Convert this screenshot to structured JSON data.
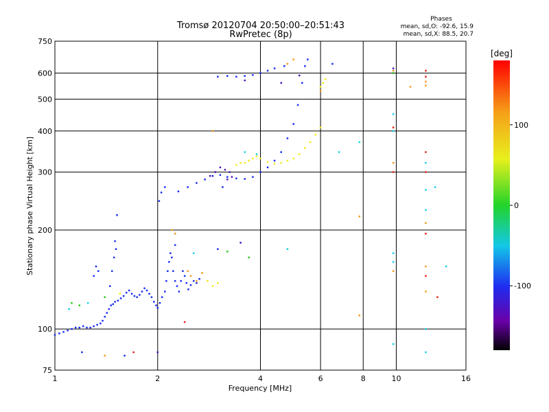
{
  "chart_data": {
    "type": "scatter",
    "title": "Tromsø 20120704 20:50:00–20:51:43",
    "subtitle": "RwPretec (8p)",
    "xlabel": "Frequency [MHz]",
    "ylabel": "Stationary phase Virtual Height [km]",
    "x_scale": "log",
    "y_scale": "log",
    "xlim": [
      1,
      16
    ],
    "ylim": [
      75,
      750
    ],
    "x_ticks": [
      1,
      2,
      4,
      6,
      8,
      10,
      16
    ],
    "y_ticks": [
      75,
      100,
      200,
      300,
      400,
      500,
      600,
      750
    ],
    "grid": true,
    "phase_stats": {
      "heading": "Phases",
      "line1": "mean, sd,O: -92.6, 15.9",
      "line2": "mean, sd,X:  88.5, 20.7"
    },
    "colorbar": {
      "label": "[deg]",
      "min": -180,
      "max": 180,
      "ticks": [
        100,
        0,
        -100
      ]
    },
    "colors": {
      "blue": "#1a2ff2",
      "purple": "#4a16b8",
      "yellow": "#f0ec1a",
      "orange": "#f59a18",
      "red": "#e8221a",
      "cyan": "#16d2e6",
      "green": "#28c81e"
    },
    "series": [
      {
        "color": "blue",
        "points": [
          [
            1.0,
            96
          ],
          [
            1.03,
            97
          ],
          [
            1.06,
            98
          ],
          [
            1.09,
            99
          ],
          [
            1.12,
            100
          ],
          [
            1.15,
            101
          ],
          [
            1.18,
            101
          ],
          [
            1.21,
            102
          ],
          [
            1.24,
            101
          ],
          [
            1.27,
            101
          ],
          [
            1.3,
            102
          ],
          [
            1.33,
            103
          ],
          [
            1.36,
            104
          ],
          [
            1.38,
            106
          ],
          [
            1.4,
            109
          ],
          [
            1.42,
            112
          ],
          [
            1.44,
            115
          ],
          [
            1.46,
            118
          ],
          [
            1.48,
            119
          ],
          [
            1.5,
            121
          ],
          [
            1.53,
            122
          ],
          [
            1.56,
            124
          ],
          [
            1.59,
            126
          ],
          [
            1.62,
            129
          ],
          [
            1.65,
            131
          ],
          [
            1.68,
            128
          ],
          [
            1.71,
            126
          ],
          [
            1.74,
            125
          ],
          [
            1.77,
            127
          ],
          [
            1.8,
            130
          ],
          [
            1.83,
            133
          ],
          [
            1.86,
            131
          ],
          [
            1.89,
            128
          ],
          [
            1.92,
            125
          ],
          [
            1.95,
            121
          ],
          [
            1.98,
            118
          ],
          [
            2.0,
            116
          ],
          [
            2.03,
            120
          ],
          [
            2.06,
            125
          ],
          [
            2.1,
            130
          ],
          [
            2.12,
            140
          ],
          [
            2.14,
            150
          ],
          [
            2.16,
            160
          ],
          [
            2.18,
            170
          ],
          [
            2.2,
            165
          ],
          [
            2.22,
            150
          ],
          [
            2.25,
            140
          ],
          [
            2.28,
            135
          ],
          [
            2.31,
            130
          ],
          [
            2.34,
            140
          ],
          [
            2.37,
            150
          ],
          [
            2.4,
            145
          ],
          [
            2.43,
            138
          ],
          [
            2.46,
            132
          ],
          [
            2.5,
            136
          ],
          [
            2.55,
            140
          ],
          [
            2.6,
            138
          ],
          [
            2.65,
            142
          ],
          [
            1.45,
            135
          ],
          [
            1.47,
            150
          ],
          [
            1.49,
            165
          ],
          [
            1.51,
            175
          ],
          [
            1.5,
            185
          ],
          [
            1.3,
            145
          ],
          [
            1.32,
            155
          ],
          [
            1.34,
            150
          ],
          [
            1.52,
            222
          ],
          [
            2.02,
            245
          ],
          [
            2.05,
            260
          ],
          [
            2.1,
            270
          ],
          [
            2.3,
            262
          ],
          [
            2.45,
            270
          ],
          [
            2.6,
            278
          ],
          [
            2.75,
            285
          ],
          [
            2.9,
            292
          ],
          [
            3.05,
            294
          ],
          [
            3.2,
            290
          ],
          [
            3.4,
            287
          ],
          [
            3.6,
            286
          ],
          [
            3.8,
            290
          ],
          [
            4.0,
            300
          ],
          [
            4.2,
            310
          ],
          [
            4.4,
            325
          ],
          [
            4.6,
            345
          ],
          [
            4.8,
            380
          ],
          [
            5.0,
            420
          ],
          [
            5.15,
            480
          ],
          [
            5.3,
            560
          ],
          [
            5.4,
            630
          ],
          [
            3.0,
            585
          ],
          [
            3.2,
            588
          ],
          [
            3.4,
            585
          ],
          [
            3.6,
            588
          ],
          [
            3.8,
            592
          ],
          [
            4.0,
            600
          ],
          [
            4.2,
            610
          ],
          [
            4.4,
            620
          ],
          [
            4.7,
            630
          ],
          [
            3.1,
            270
          ],
          [
            3.0,
            175
          ],
          [
            2.25,
            180
          ],
          [
            1.2,
            85
          ],
          [
            1.6,
            83
          ],
          [
            5.5,
            660
          ],
          [
            6.5,
            640
          ]
        ]
      },
      {
        "color": "purple",
        "points": [
          [
            2.85,
            292
          ],
          [
            2.95,
            300
          ],
          [
            3.05,
            310
          ],
          [
            3.15,
            305
          ],
          [
            3.25,
            300
          ],
          [
            3.3,
            290
          ],
          [
            3.2,
            285
          ],
          [
            3.5,
            183
          ],
          [
            2.0,
            85
          ],
          [
            9.8,
            620
          ],
          [
            5.2,
            590
          ],
          [
            4.6,
            560
          ],
          [
            3.6,
            570
          ]
        ]
      },
      {
        "color": "yellow",
        "points": [
          [
            3.6,
            320
          ],
          [
            3.7,
            325
          ],
          [
            3.8,
            330
          ],
          [
            3.9,
            335
          ],
          [
            4.0,
            330
          ],
          [
            4.2,
            322
          ],
          [
            4.4,
            318
          ],
          [
            4.6,
            320
          ],
          [
            4.8,
            325
          ],
          [
            5.0,
            330
          ],
          [
            5.2,
            340
          ],
          [
            5.4,
            355
          ],
          [
            5.6,
            370
          ],
          [
            5.8,
            390
          ],
          [
            6.0,
            410
          ],
          [
            3.5,
            320
          ],
          [
            3.4,
            315
          ],
          [
            6.0,
            545
          ],
          [
            6.1,
            560
          ],
          [
            6.2,
            575
          ],
          [
            2.8,
            140
          ],
          [
            2.9,
            135
          ],
          [
            3.0,
            138
          ],
          [
            1.55,
            128
          ]
        ]
      },
      {
        "color": "orange",
        "points": [
          [
            4.8,
            640
          ],
          [
            5.0,
            660
          ],
          [
            6.0,
            530
          ],
          [
            2.45,
            150
          ],
          [
            2.5,
            145
          ],
          [
            2.6,
            140
          ],
          [
            2.7,
            148
          ],
          [
            2.2,
            200
          ],
          [
            2.25,
            195
          ],
          [
            1.4,
            83
          ],
          [
            7.8,
            220
          ],
          [
            7.8,
            110
          ],
          [
            9.8,
            610
          ],
          [
            9.8,
            320
          ],
          [
            11.0,
            545
          ],
          [
            12.2,
            550
          ],
          [
            12.2,
            565
          ],
          [
            12.2,
            210
          ],
          [
            12.2,
            155
          ],
          [
            12.2,
            130
          ],
          [
            9.8,
            150
          ],
          [
            2.9,
            400
          ]
        ]
      },
      {
        "color": "red",
        "points": [
          [
            12.2,
            610
          ],
          [
            12.2,
            585
          ],
          [
            12.2,
            345
          ],
          [
            12.2,
            300
          ],
          [
            12.2,
            195
          ],
          [
            12.2,
            145
          ],
          [
            9.8,
            410
          ],
          [
            9.8,
            300
          ],
          [
            13.2,
            125
          ],
          [
            2.4,
            105
          ],
          [
            1.7,
            85
          ]
        ]
      },
      {
        "color": "cyan",
        "points": [
          [
            9.8,
            450
          ],
          [
            9.8,
            400
          ],
          [
            9.8,
            170
          ],
          [
            9.8,
            160
          ],
          [
            9.8,
            90
          ],
          [
            12.2,
            320
          ],
          [
            12.2,
            265
          ],
          [
            12.2,
            230
          ],
          [
            12.2,
            100
          ],
          [
            12.2,
            85
          ],
          [
            13.0,
            270
          ],
          [
            14.0,
            155
          ],
          [
            6.8,
            345
          ],
          [
            7.8,
            370
          ],
          [
            4.8,
            175
          ],
          [
            3.6,
            345
          ],
          [
            3.9,
            340
          ],
          [
            1.1,
            115
          ],
          [
            1.25,
            120
          ],
          [
            2.55,
            170
          ]
        ]
      },
      {
        "color": "green",
        "points": [
          [
            1.12,
            120
          ],
          [
            1.18,
            118
          ],
          [
            1.4,
            125
          ],
          [
            3.2,
            172
          ],
          [
            3.7,
            165
          ],
          [
            9.8,
            600
          ]
        ]
      }
    ]
  }
}
